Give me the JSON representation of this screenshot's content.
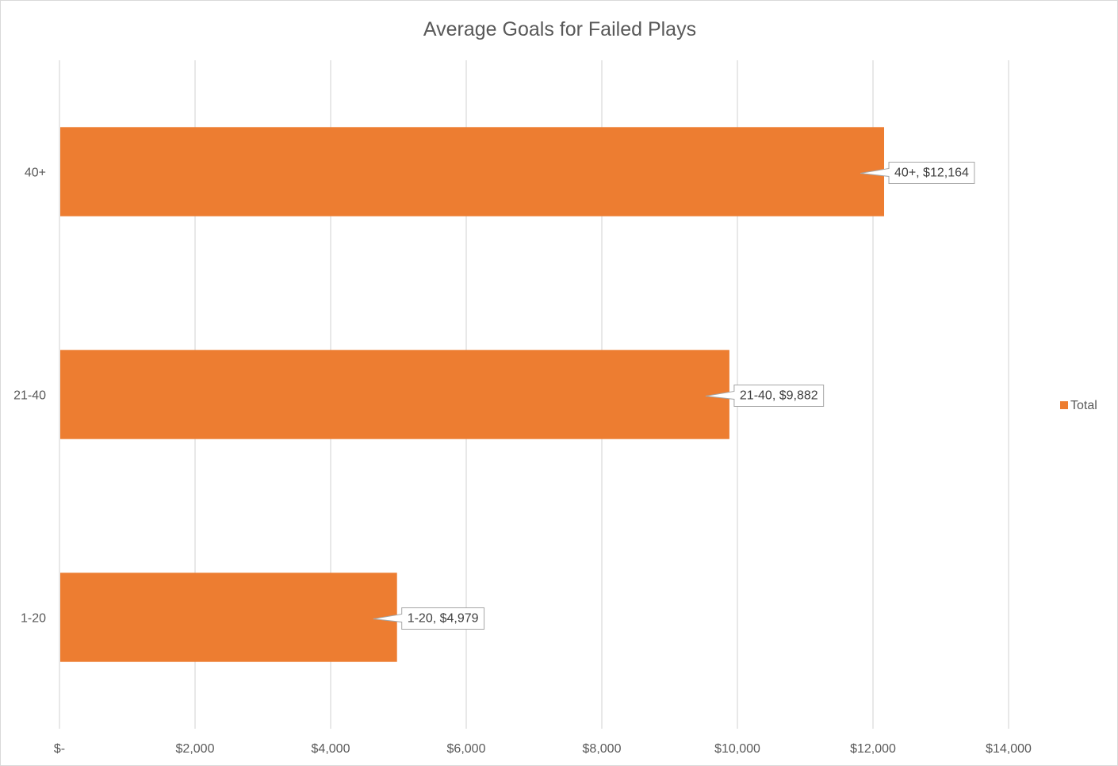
{
  "chart_data": {
    "type": "bar",
    "orientation": "horizontal",
    "title": "Average Goals for Failed Plays",
    "categories": [
      "40+",
      "21-40",
      "1-20"
    ],
    "series": [
      {
        "name": "Total",
        "values": [
          12164,
          9882,
          4979
        ],
        "color": "#ED7D31"
      }
    ],
    "data_labels": [
      "40+,  $12,164",
      "21-40,  $9,882",
      "1-20,  $4,979"
    ],
    "xlim": [
      0,
      14000
    ],
    "x_ticks": [
      0,
      2000,
      4000,
      6000,
      8000,
      10000,
      12000,
      14000
    ],
    "x_tick_labels": [
      "$-",
      "$2,000",
      "$4,000",
      "$6,000",
      "$8,000",
      "$10,000",
      "$12,000",
      "$14,000"
    ],
    "grid": true,
    "legend_position": "right"
  }
}
